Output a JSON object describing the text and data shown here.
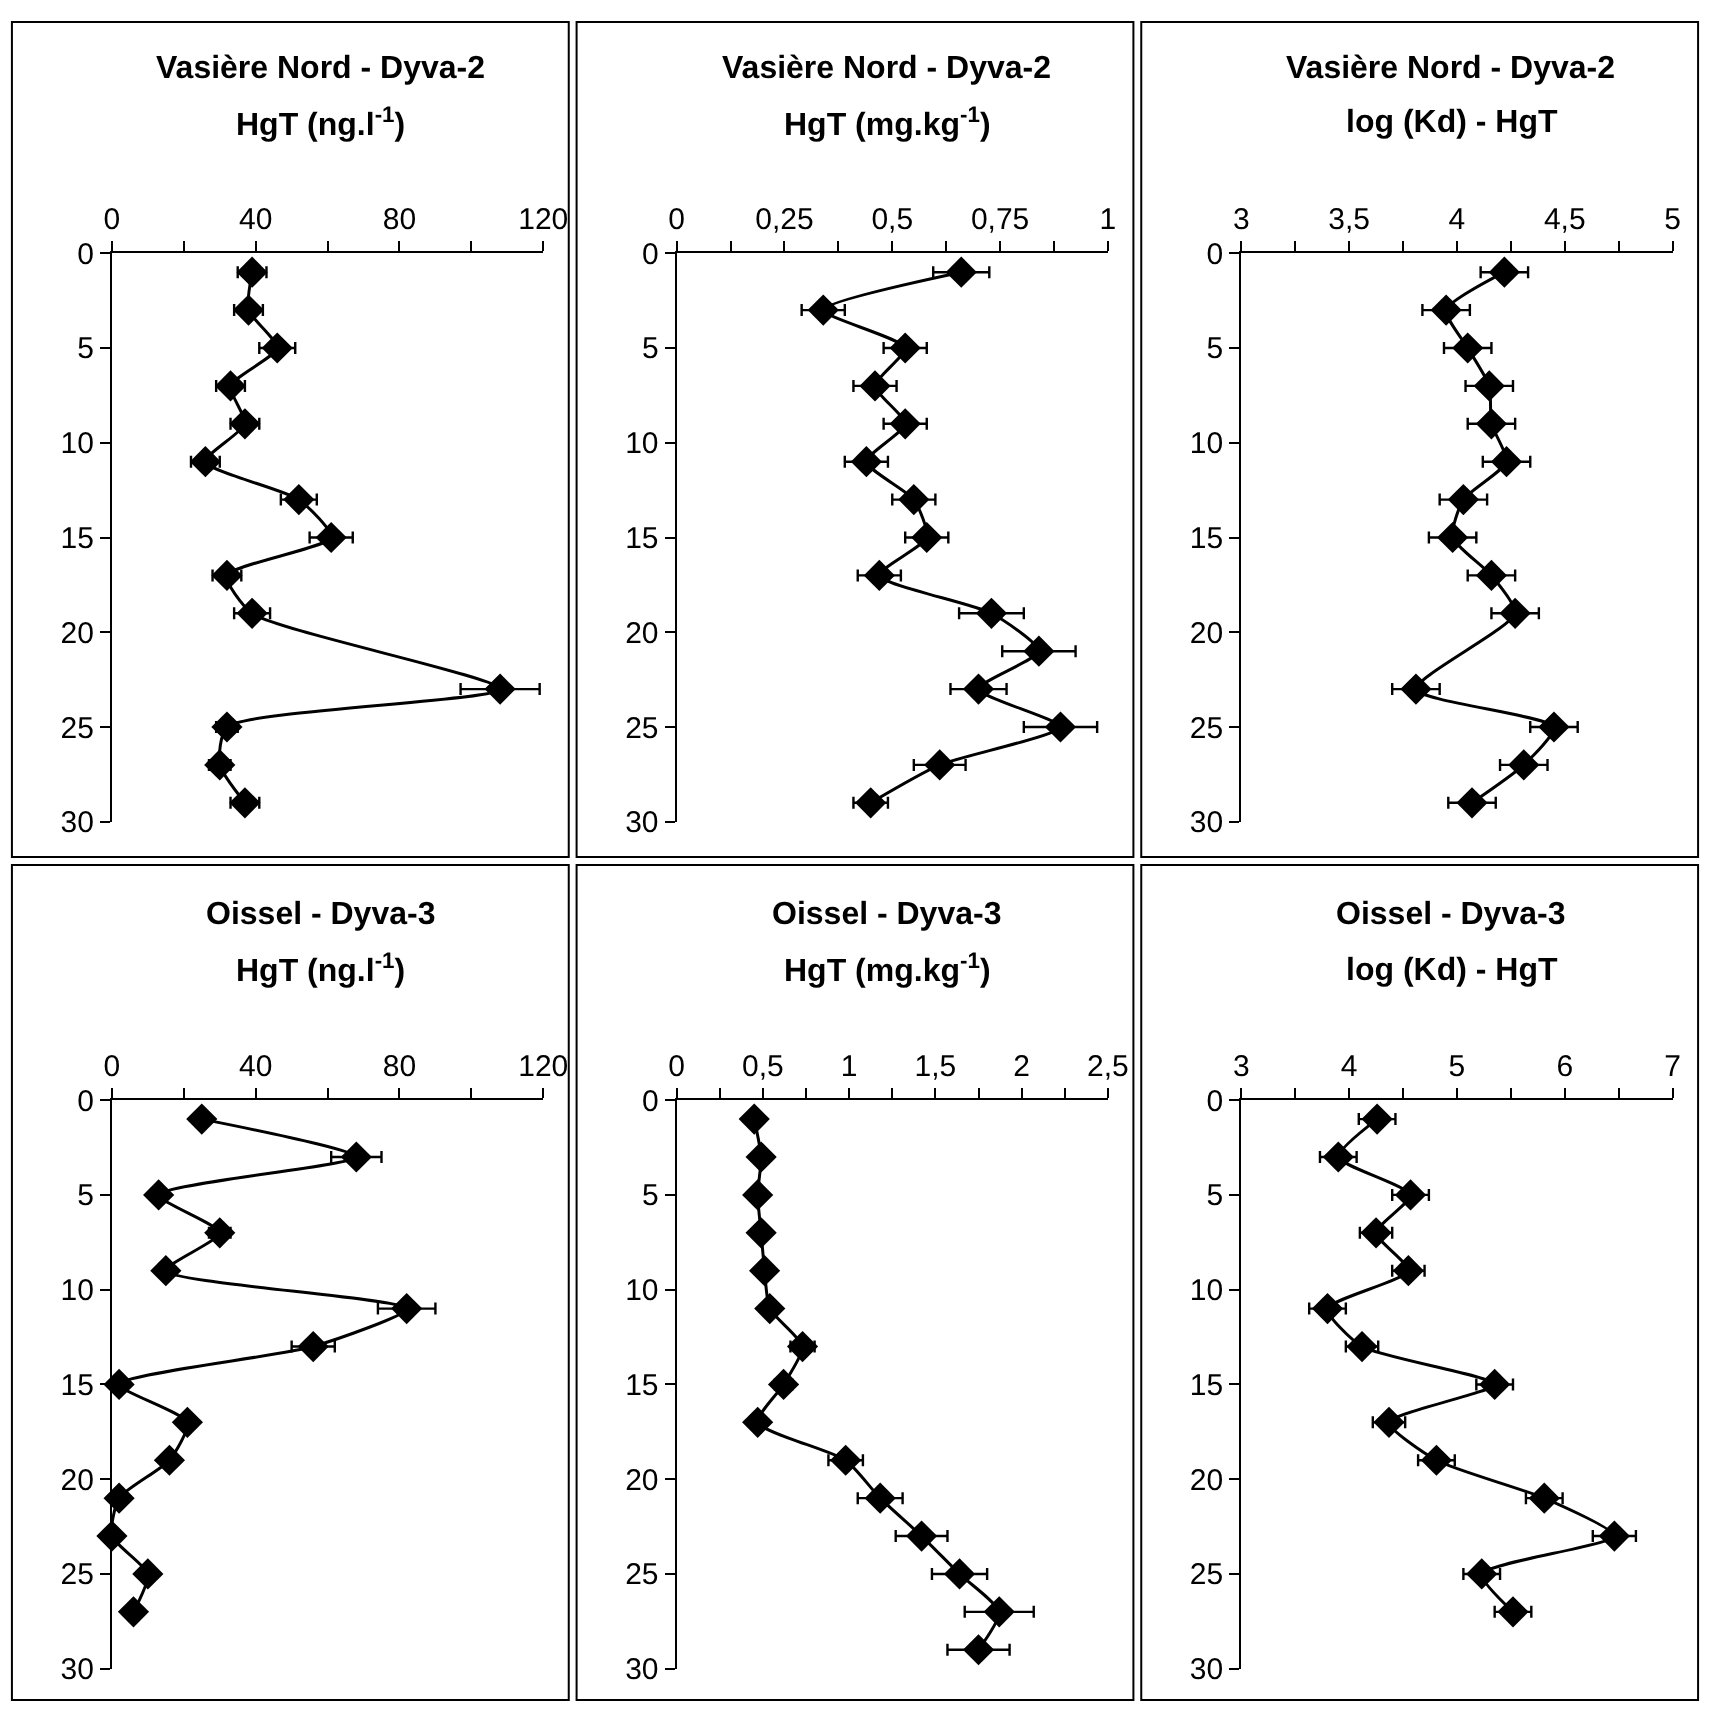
{
  "chart_data": [
    {
      "type": "line",
      "orientation": "horizontal",
      "title": "Vasière Nord - Dyva-2",
      "xlabel": "HgT (ng.l$^{-1}$)",
      "marker": "diamond",
      "line_style": "solid",
      "x": [
        1,
        3,
        5,
        7,
        9,
        11,
        13,
        15,
        17,
        19,
        23,
        25,
        27,
        29
      ],
      "series": [
        {
          "color": "#000000",
          "values": [
            39,
            38,
            46,
            33,
            37,
            26,
            52,
            61,
            32,
            39,
            108,
            32,
            30,
            37
          ],
          "errors": [
            4,
            4,
            5,
            4,
            4,
            4,
            5,
            6,
            4,
            5,
            11,
            3,
            3,
            4
          ]
        }
      ],
      "xlim": [
        0,
        120
      ],
      "xticks": [
        0,
        {
          "value": 20,
          "label": null
        },
        40,
        {
          "value": 60,
          "label": null
        },
        80,
        {
          "value": 100,
          "label": null
        },
        120
      ],
      "ylim": [
        30,
        0
      ],
      "yticks": [
        0,
        5,
        10,
        15,
        20,
        25,
        30
      ]
    },
    {
      "type": "line",
      "orientation": "horizontal",
      "title": "Vasière Nord - Dyva-2",
      "xlabel": "HgT (mg.kg$^{-1}$)",
      "marker": "diamond",
      "line_style": "solid",
      "x": [
        1,
        3,
        5,
        7,
        9,
        11,
        13,
        15,
        17,
        19,
        21,
        23,
        25,
        27,
        29
      ],
      "series": [
        {
          "color": "#000000",
          "values": [
            0.66,
            0.34,
            0.53,
            0.46,
            0.53,
            0.44,
            0.55,
            0.58,
            0.47,
            0.73,
            0.84,
            0.7,
            0.89,
            0.61,
            0.45
          ],
          "errors": [
            0.065,
            0.05,
            0.05,
            0.05,
            0.05,
            0.05,
            0.05,
            0.05,
            0.05,
            0.075,
            0.085,
            0.065,
            0.085,
            0.06,
            0.04
          ]
        }
      ],
      "xlim": [
        0,
        1
      ],
      "xticks": [
        {
          "value": 0,
          "label": "0"
        },
        {
          "value": 0.125,
          "label": null
        },
        {
          "value": 0.25,
          "label": "0,25"
        },
        {
          "value": 0.375,
          "label": null
        },
        {
          "value": 0.5,
          "label": "0,5"
        },
        {
          "value": 0.625,
          "label": null
        },
        {
          "value": 0.75,
          "label": "0,75"
        },
        {
          "value": 0.875,
          "label": null
        },
        {
          "value": 1,
          "label": "1"
        }
      ],
      "ylim": [
        30,
        0
      ],
      "yticks": [
        0,
        5,
        10,
        15,
        20,
        25,
        30
      ]
    },
    {
      "type": "line",
      "orientation": "horizontal",
      "title": "Vasière Nord - Dyva-2",
      "xlabel": "log (Kd) - HgT",
      "marker": "diamond",
      "line_style": "solid",
      "x": [
        1,
        3,
        5,
        7,
        9,
        11,
        13,
        15,
        17,
        19,
        23,
        25,
        27,
        29
      ],
      "series": [
        {
          "color": "#000000",
          "values": [
            4.22,
            3.95,
            4.05,
            4.15,
            4.16,
            4.23,
            4.03,
            3.98,
            4.16,
            4.27,
            3.81,
            4.45,
            4.31,
            4.07
          ],
          "errors": [
            0.11,
            0.11,
            0.11,
            0.11,
            0.11,
            0.11,
            0.11,
            0.11,
            0.11,
            0.11,
            0.11,
            0.11,
            0.11,
            0.11
          ]
        }
      ],
      "xlim": [
        3,
        5
      ],
      "xticks": [
        3,
        {
          "value": 3.25,
          "label": null
        },
        {
          "value": 3.5,
          "label": "3,5"
        },
        {
          "value": 3.75,
          "label": null
        },
        4,
        {
          "value": 4.25,
          "label": null
        },
        {
          "value": 4.5,
          "label": "4,5"
        },
        {
          "value": 4.75,
          "label": null
        },
        5
      ],
      "ylim": [
        30,
        0
      ],
      "yticks": [
        0,
        5,
        10,
        15,
        20,
        25,
        30
      ]
    },
    {
      "type": "line",
      "orientation": "horizontal",
      "title": "Oissel - Dyva-3",
      "xlabel": "HgT (ng.l$^{-1}$)",
      "marker": "diamond",
      "line_style": "solid",
      "x": [
        1,
        3,
        5,
        7,
        9,
        11,
        13,
        15,
        17,
        19,
        21,
        23,
        25,
        27
      ],
      "series": [
        {
          "color": "#000000",
          "values": [
            25,
            68,
            13,
            30,
            15,
            82,
            56,
            2,
            21,
            16,
            2,
            0,
            10,
            6
          ],
          "errors": [
            null,
            7,
            null,
            3,
            null,
            8,
            6,
            null,
            null,
            null,
            null,
            null,
            null,
            null
          ]
        }
      ],
      "xlim": [
        0,
        120
      ],
      "xticks": [
        0,
        {
          "value": 20,
          "label": null
        },
        40,
        {
          "value": 60,
          "label": null
        },
        80,
        {
          "value": 100,
          "label": null
        },
        120
      ],
      "ylim": [
        30,
        0
      ],
      "yticks": [
        0,
        5,
        10,
        15,
        20,
        25,
        30
      ]
    },
    {
      "type": "line",
      "orientation": "horizontal",
      "title": "Oissel - Dyva-3",
      "xlabel": "HgT (mg.kg$^{-1}$)",
      "marker": "diamond",
      "line_style": "solid",
      "x": [
        1,
        3,
        5,
        7,
        9,
        11,
        13,
        15,
        17,
        19,
        21,
        23,
        25,
        27,
        29
      ],
      "series": [
        {
          "color": "#000000",
          "values": [
            0.45,
            0.49,
            0.47,
            0.49,
            0.51,
            0.54,
            0.73,
            0.62,
            0.47,
            0.98,
            1.18,
            1.42,
            1.64,
            1.87,
            1.75
          ],
          "errors": [
            null,
            null,
            null,
            null,
            null,
            null,
            0.07,
            0.05,
            null,
            0.1,
            0.13,
            0.15,
            0.16,
            0.2,
            0.18
          ]
        }
      ],
      "xlim": [
        0,
        2.5
      ],
      "xticks": [
        0,
        {
          "value": 0.25,
          "label": null
        },
        {
          "value": 0.5,
          "label": "0,5"
        },
        {
          "value": 0.75,
          "label": null
        },
        1,
        {
          "value": 1.25,
          "label": null
        },
        {
          "value": 1.5,
          "label": "1,5"
        },
        {
          "value": 1.75,
          "label": null
        },
        2,
        {
          "value": 2.25,
          "label": null
        },
        {
          "value": 2.5,
          "label": "2,5"
        }
      ],
      "ylim": [
        30,
        0
      ],
      "yticks": [
        0,
        5,
        10,
        15,
        20,
        25,
        30
      ]
    },
    {
      "type": "line",
      "orientation": "horizontal",
      "title": "Oissel - Dyva-3",
      "xlabel": "log (Kd) - HgT",
      "marker": "diamond",
      "line_style": "solid",
      "x": [
        1,
        3,
        5,
        7,
        9,
        11,
        13,
        15,
        17,
        19,
        21,
        23,
        25,
        27
      ],
      "series": [
        {
          "color": "#000000",
          "values": [
            4.26,
            3.9,
            4.57,
            4.25,
            4.55,
            3.8,
            4.12,
            5.35,
            4.37,
            4.81,
            5.81,
            6.46,
            5.23,
            5.52
          ],
          "errors": [
            0.17,
            0.17,
            0.17,
            0.15,
            0.15,
            0.17,
            0.15,
            0.17,
            0.15,
            0.17,
            0.17,
            0.2,
            0.17,
            0.17
          ]
        }
      ],
      "xlim": [
        3,
        7
      ],
      "xticks": [
        3,
        {
          "value": 3.5,
          "label": null
        },
        4,
        {
          "value": 4.5,
          "label": null
        },
        5,
        {
          "value": 5.5,
          "label": null
        },
        6,
        {
          "value": 6.5,
          "label": null
        },
        7
      ],
      "ylim": [
        30,
        0
      ],
      "yticks": [
        0,
        5,
        10,
        15,
        20,
        25,
        30
      ]
    }
  ]
}
